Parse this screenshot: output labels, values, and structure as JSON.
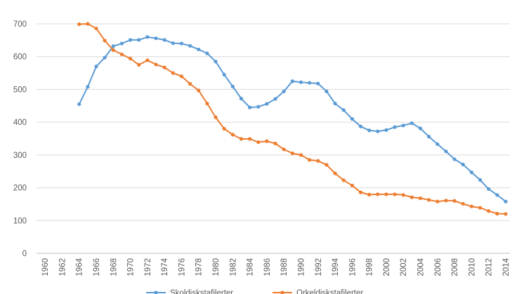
{
  "chart_data": {
    "type": "line",
    "title": "",
    "xlabel": "",
    "ylabel": "",
    "ylim": [
      0,
      700
    ],
    "yticks": [
      0,
      100,
      200,
      300,
      400,
      500,
      600,
      700
    ],
    "xlim": [
      1959,
      2014.5
    ],
    "xtick_labels": [
      "1960",
      "1962",
      "1964",
      "1966",
      "1968",
      "1970",
      "1972",
      "1974",
      "1976",
      "1978",
      "1980",
      "1982",
      "1984",
      "1986",
      "1988",
      "1990",
      "1992",
      "1994",
      "1996",
      "1998",
      "2000",
      "2002",
      "2004",
      "2006",
      "2008",
      "2010",
      "2012",
      "2014"
    ],
    "grid": true,
    "legend_position": "bottom",
    "series": [
      {
        "name": "Skoldiskstafilerter",
        "color": "#5b9bd5",
        "x": [
          1964,
          1965,
          1966,
          1967,
          1968,
          1969,
          1970,
          1971,
          1972,
          1973,
          1974,
          1975,
          1976,
          1977,
          1978,
          1979,
          1980,
          1981,
          1982,
          1983,
          1984,
          1985,
          1986,
          1987,
          1988,
          1989,
          1990,
          1991,
          1992,
          1993,
          1994,
          1995,
          1996,
          1997,
          1998,
          1999,
          2000,
          2001,
          2002,
          2003,
          2004,
          2005,
          2006,
          2007,
          2008,
          2009,
          2010,
          2011,
          2012,
          2013,
          2014
        ],
        "values": [
          455,
          508,
          570,
          597,
          632,
          640,
          651,
          651,
          660,
          656,
          651,
          641,
          640,
          633,
          622,
          610,
          585,
          545,
          509,
          472,
          445,
          447,
          456,
          471,
          494,
          525,
          522,
          520,
          518,
          494,
          457,
          437,
          410,
          387,
          375,
          372,
          376,
          385,
          390,
          397,
          381,
          356,
          333,
          311,
          287,
          271,
          247,
          224,
          196,
          178,
          158
        ]
      },
      {
        "name": "Orkeldiskstafilerter",
        "color": "#ed7d31",
        "x": [
          1964,
          1965,
          1966,
          1967,
          1968,
          1969,
          1970,
          1971,
          1972,
          1973,
          1974,
          1975,
          1976,
          1977,
          1978,
          1979,
          1980,
          1981,
          1982,
          1983,
          1984,
          1985,
          1986,
          1987,
          1988,
          1989,
          1990,
          1991,
          1992,
          1993,
          1994,
          1995,
          1996,
          1997,
          1998,
          1999,
          2000,
          2001,
          2002,
          2003,
          2004,
          2005,
          2006,
          2007,
          2008,
          2009,
          2010,
          2011,
          2012,
          2013,
          2014
        ],
        "values": [
          699,
          700,
          686,
          649,
          620,
          607,
          594,
          575,
          589,
          576,
          567,
          550,
          540,
          517,
          497,
          457,
          415,
          380,
          362,
          349,
          349,
          339,
          342,
          335,
          317,
          305,
          300,
          285,
          282,
          270,
          244,
          223,
          207,
          186,
          179,
          180,
          180,
          180,
          178,
          171,
          168,
          163,
          158,
          161,
          160,
          151,
          143,
          139,
          129,
          121,
          120
        ]
      }
    ]
  }
}
